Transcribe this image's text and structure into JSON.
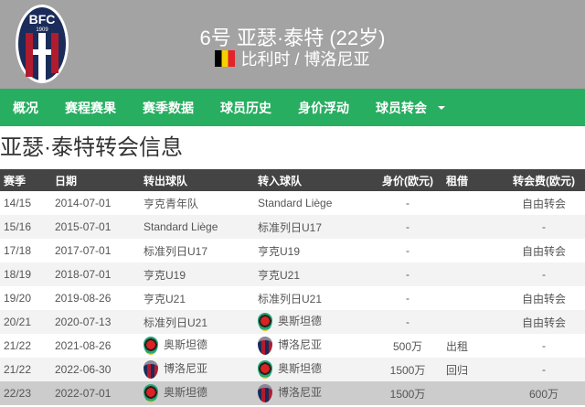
{
  "header": {
    "title": "6号 亚瑟·泰特 (22岁)",
    "subtitle": "比利时 / 博洛尼亚",
    "logo_text": "BFC 1909"
  },
  "nav": [
    "概况",
    "赛程赛果",
    "赛季数据",
    "球员历史",
    "身价浮动",
    "球员转会"
  ],
  "page_title": "亚瑟·泰特转会信息",
  "columns": [
    "赛季",
    "日期",
    "转出球队",
    "转入球队",
    "身价(欧元)",
    "租借",
    "转会费(欧元)"
  ],
  "rows": [
    [
      "14/15",
      "2014-07-01",
      "亨克青年队",
      "Standard Liège",
      "-",
      "",
      "自由转会"
    ],
    [
      "15/16",
      "2015-07-01",
      "Standard Liège",
      "标准列日U17",
      "-",
      "",
      "-"
    ],
    [
      "17/18",
      "2017-07-01",
      "标准列日U17",
      "亨克U19",
      "-",
      "",
      "自由转会"
    ],
    [
      "18/19",
      "2018-07-01",
      "亨克U19",
      "亨克U21",
      "-",
      "",
      "-"
    ],
    [
      "19/20",
      "2019-08-26",
      "亨克U21",
      "标准列日U21",
      "-",
      "",
      "自由转会"
    ],
    [
      "20/21",
      "2020-07-13",
      "标准列日U21",
      "奥斯坦德",
      "-",
      "",
      "自由转会"
    ],
    [
      "21/22",
      "2021-08-26",
      "奥斯坦德",
      "博洛尼亚",
      "500万",
      "出租",
      "-"
    ],
    [
      "21/22",
      "2022-06-30",
      "博洛尼亚",
      "奥斯坦德",
      "1500万",
      "回归",
      "-"
    ],
    [
      "22/23",
      "2022-07-01",
      "奥斯坦德",
      "博洛尼亚",
      "1500万",
      "",
      "600万"
    ]
  ]
}
